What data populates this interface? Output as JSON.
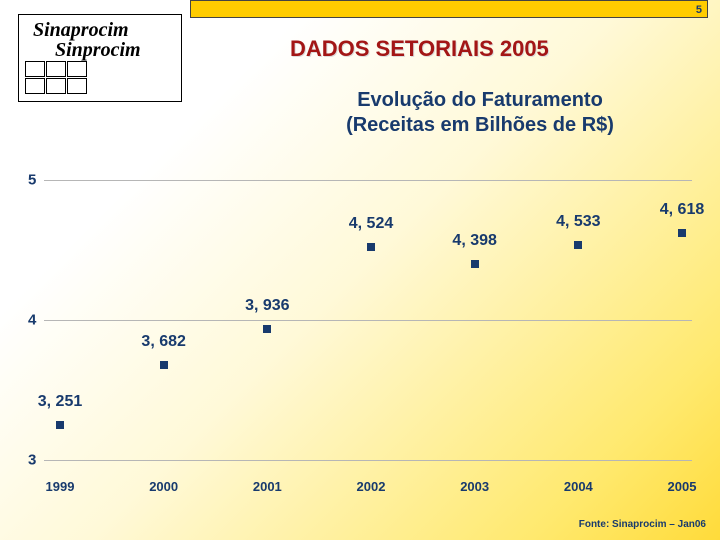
{
  "page_number": "5",
  "logo": {
    "line1": "Sinaprocim",
    "line2": "Sinprocim"
  },
  "title": "DADOS SETORIAIS 2005",
  "subtitle_line1": "Evolução do Faturamento",
  "subtitle_line2": "(Receitas em Bilhões de R$)",
  "source": "Fonte: Sinaprocim – Jan06",
  "chart": {
    "type": "scatter",
    "ylim": [
      3,
      5
    ],
    "ytick_step": 1,
    "label_fontsize": 15,
    "value_fontsize": 16,
    "point_color": "#183a6d",
    "grid_color": "#b6b6b6",
    "text_color": "#183a6d",
    "marker_size": 8,
    "categories": [
      "1999",
      "2000",
      "2001",
      "2002",
      "2003",
      "2004",
      "2005"
    ],
    "values": [
      3.251,
      3.682,
      3.936,
      4.524,
      4.398,
      4.533,
      4.618
    ],
    "value_labels": [
      "3, 251",
      "3, 682",
      "3, 936",
      "4, 524",
      "4, 398",
      "4, 533",
      "4, 618"
    ],
    "yticks": [
      "3",
      "4",
      "5"
    ]
  }
}
